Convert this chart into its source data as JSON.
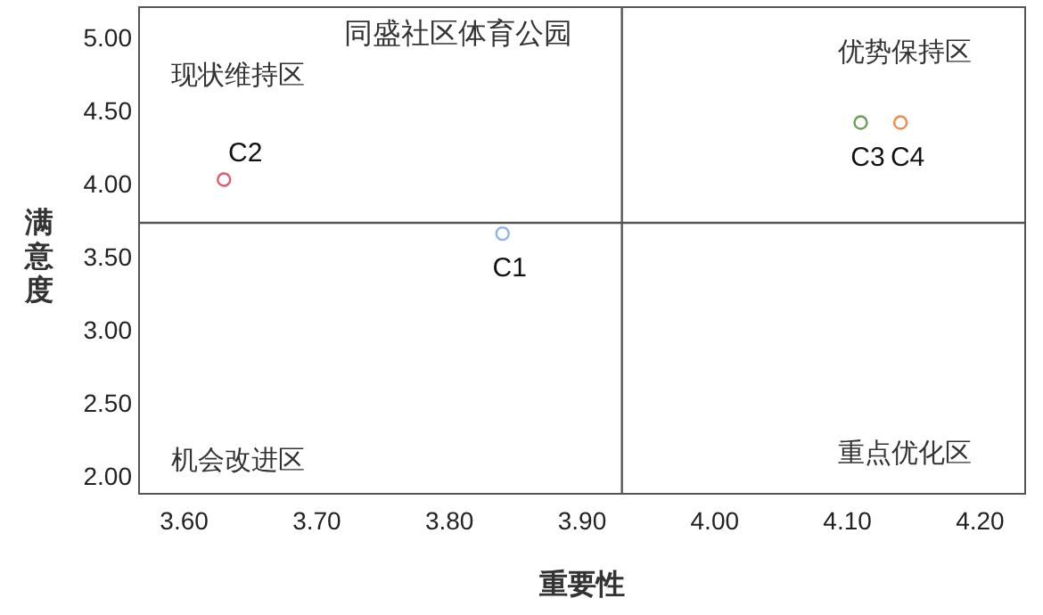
{
  "chart_data": {
    "type": "scatter",
    "title": "同盛社区体育公园",
    "xlabel": "重要性",
    "ylabel": "满意度",
    "xlim": [
      3.566,
      4.234
    ],
    "ylim": [
      1.88,
      5.21
    ],
    "xticks": [
      {
        "value": 3.6,
        "label": "3.60"
      },
      {
        "value": 3.7,
        "label": "3.70"
      },
      {
        "value": 3.8,
        "label": "3.80"
      },
      {
        "value": 3.9,
        "label": "3.90"
      },
      {
        "value": 4.0,
        "label": "4.00"
      },
      {
        "value": 4.1,
        "label": "4.10"
      },
      {
        "value": 4.2,
        "label": "4.20"
      }
    ],
    "yticks": [
      {
        "value": 2,
        "label": "2.00"
      },
      {
        "value": 2.5,
        "label": "2.50"
      },
      {
        "value": 3,
        "label": "3.00"
      },
      {
        "value": 3.5,
        "label": "3.50"
      },
      {
        "value": 4,
        "label": "4.00"
      },
      {
        "value": 4.5,
        "label": "4.50"
      },
      {
        "value": 5,
        "label": "5.00"
      }
    ],
    "series": [
      {
        "name": "C1",
        "color": "#8fb4e8",
        "x": [
          3.84
        ],
        "values": [
          3.66
        ]
      },
      {
        "name": "C2",
        "color": "#e05a70",
        "x": [
          3.63
        ],
        "values": [
          4.03
        ]
      },
      {
        "name": "C3",
        "color": "#6a9f58",
        "x": [
          4.11
        ],
        "values": [
          4.42
        ]
      },
      {
        "name": "C4",
        "color": "#f08a50",
        "x": [
          4.14
        ],
        "values": [
          4.42
        ]
      }
    ],
    "ref_lines": [
      {
        "axis": "x",
        "value": 3.93,
        "color": "#555555"
      },
      {
        "axis": "y",
        "value": 3.734,
        "color": "#555555"
      }
    ],
    "annotations": [
      "现状维持区",
      "优势保持区",
      "机会改进区",
      "重点优化区"
    ],
    "marker": "circle",
    "grid": false
  }
}
